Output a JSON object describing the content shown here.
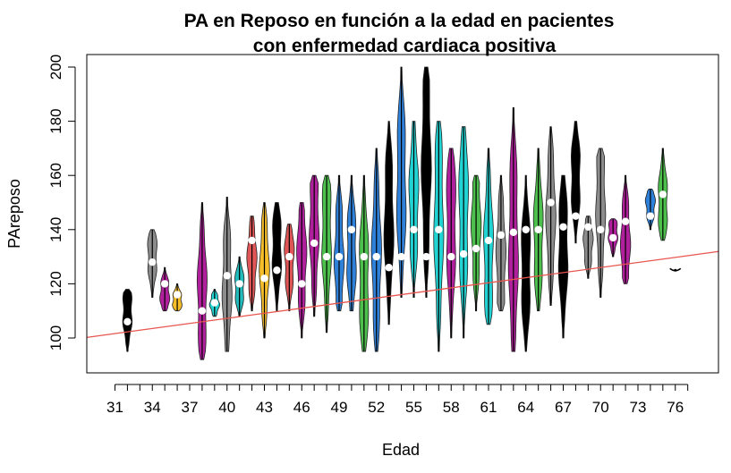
{
  "chart_data": {
    "type": "violin",
    "title_line1": "PA en Reposo en función a la edad en pacientes",
    "title_line2": "con enfermedad cardiaca positiva",
    "xlabel": "Edad",
    "ylabel": "PAreposo",
    "ylim": [
      88,
      210
    ],
    "y_ticks": [
      100,
      120,
      140,
      160,
      180,
      200
    ],
    "x_tick_labels": [
      "31",
      "34",
      "37",
      "40",
      "43",
      "46",
      "49",
      "52",
      "55",
      "58",
      "61",
      "64",
      "67",
      "70",
      "73",
      "76"
    ],
    "regression_line": {
      "color": "#e8554e",
      "y_at_age_30": 101,
      "y_at_age_78": 131
    },
    "groups": [
      {
        "age": 32,
        "median": 106,
        "min": 95,
        "max": 118,
        "color": "#000000"
      },
      {
        "age": 34,
        "median": 128,
        "min": 115,
        "max": 140,
        "color": "#8c8c8c"
      },
      {
        "age": 35,
        "median": 120,
        "min": 110,
        "max": 126,
        "color": "#b0209c"
      },
      {
        "age": 36,
        "median": 116,
        "min": 110,
        "max": 120,
        "color": "#f5be2a"
      },
      {
        "age": 38,
        "median": 110,
        "min": 92,
        "max": 150,
        "color": "#b0209c"
      },
      {
        "age": 39,
        "median": 113,
        "min": 108,
        "max": 118,
        "color": "#22d3d3"
      },
      {
        "age": 40,
        "median": 123,
        "min": 95,
        "max": 152,
        "color": "#8c8c8c"
      },
      {
        "age": 41,
        "median": 120,
        "min": 108,
        "max": 130,
        "color": "#22bcbc"
      },
      {
        "age": 42,
        "median": 136,
        "min": 110,
        "max": 145,
        "color": "#e05656"
      },
      {
        "age": 43,
        "median": 122,
        "min": 100,
        "max": 150,
        "color": "#f5be2a"
      },
      {
        "age": 44,
        "median": 125,
        "min": 110,
        "max": 150,
        "color": "#000000"
      },
      {
        "age": 45,
        "median": 130,
        "min": 110,
        "max": 142,
        "color": "#e05656"
      },
      {
        "age": 46,
        "median": 120,
        "min": 100,
        "max": 150,
        "color": "#b0209c"
      },
      {
        "age": 47,
        "median": 135,
        "min": 108,
        "max": 160,
        "color": "#b0209c"
      },
      {
        "age": 48,
        "median": 130,
        "min": 102,
        "max": 160,
        "color": "#4cbf4c"
      },
      {
        "age": 49,
        "median": 130,
        "min": 110,
        "max": 160,
        "color": "#2f80d8"
      },
      {
        "age": 50,
        "median": 140,
        "min": 110,
        "max": 160,
        "color": "#2f80d8"
      },
      {
        "age": 51,
        "median": 130,
        "min": 95,
        "max": 160,
        "color": "#4cbf4c"
      },
      {
        "age": 52,
        "median": 130,
        "min": 95,
        "max": 170,
        "color": "#2f80d8"
      },
      {
        "age": 53,
        "median": 126,
        "min": 105,
        "max": 180,
        "color": "#000000"
      },
      {
        "age": 54,
        "median": 130,
        "min": 115,
        "max": 200,
        "color": "#2f80d8"
      },
      {
        "age": 55,
        "median": 140,
        "min": 115,
        "max": 180,
        "color": "#22d3d3"
      },
      {
        "age": 56,
        "median": 130,
        "min": 115,
        "max": 200,
        "color": "#000000"
      },
      {
        "age": 57,
        "median": 140,
        "min": 95,
        "max": 180,
        "color": "#22d3d3"
      },
      {
        "age": 58,
        "median": 130,
        "min": 100,
        "max": 170,
        "color": "#b0209c"
      },
      {
        "age": 59,
        "median": 131,
        "min": 100,
        "max": 178,
        "color": "#22d3d3"
      },
      {
        "age": 60,
        "median": 133,
        "min": 110,
        "max": 160,
        "color": "#4cbf4c"
      },
      {
        "age": 61,
        "median": 136,
        "min": 105,
        "max": 170,
        "color": "#22d3d3"
      },
      {
        "age": 62,
        "median": 138,
        "min": 110,
        "max": 160,
        "color": "#8c8c8c"
      },
      {
        "age": 63,
        "median": 139,
        "min": 95,
        "max": 185,
        "color": "#b0209c"
      },
      {
        "age": 64,
        "median": 140,
        "min": 95,
        "max": 160,
        "color": "#000000"
      },
      {
        "age": 65,
        "median": 140,
        "min": 110,
        "max": 170,
        "color": "#4cbf4c"
      },
      {
        "age": 66,
        "median": 150,
        "min": 112,
        "max": 178,
        "color": "#8c8c8c"
      },
      {
        "age": 67,
        "median": 141,
        "min": 100,
        "max": 160,
        "color": "#000000"
      },
      {
        "age": 68,
        "median": 145,
        "min": 135,
        "max": 180,
        "color": "#000000"
      },
      {
        "age": 69,
        "median": 141,
        "min": 122,
        "max": 145,
        "color": "#8c8c8c"
      },
      {
        "age": 70,
        "median": 140,
        "min": 115,
        "max": 170,
        "color": "#8c8c8c"
      },
      {
        "age": 71,
        "median": 137,
        "min": 130,
        "max": 144,
        "color": "#b0209c"
      },
      {
        "age": 72,
        "median": 143,
        "min": 120,
        "max": 160,
        "color": "#b0209c"
      },
      {
        "age": 74,
        "median": 145,
        "min": 140,
        "max": 155,
        "color": "#2f80d8"
      },
      {
        "age": 75,
        "median": 153,
        "min": 136,
        "max": 170,
        "color": "#4cbf4c"
      },
      {
        "age": 76,
        "median": 125,
        "min": 125,
        "max": 125,
        "color": "#000000"
      }
    ]
  }
}
